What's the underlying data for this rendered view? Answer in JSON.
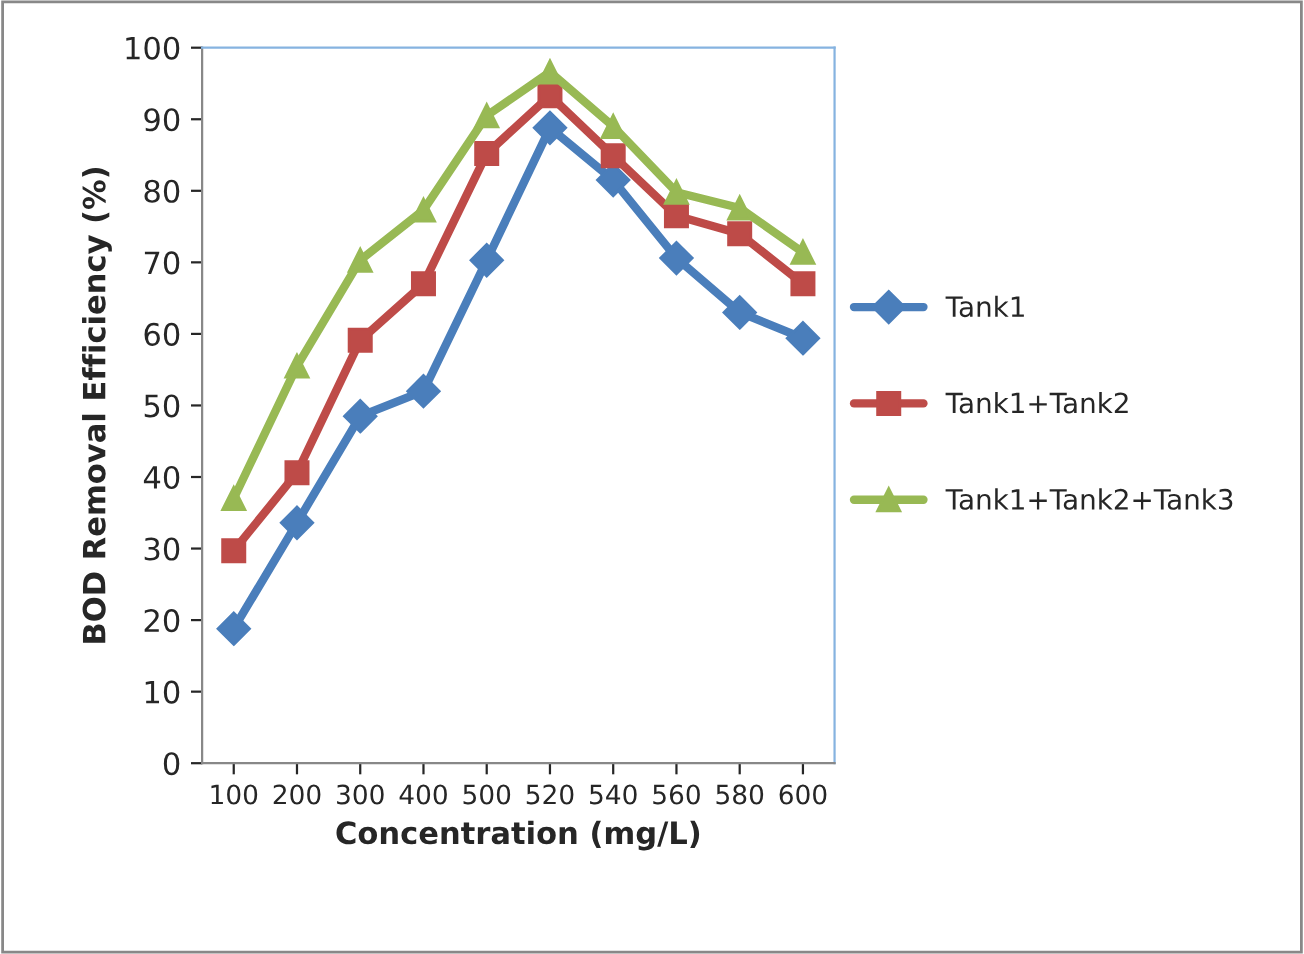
{
  "chart_data": {
    "type": "line",
    "xlabel": "Concentration (mg/L)",
    "ylabel": "BOD Removal Efficiency (%)",
    "categories": [
      "100",
      "200",
      "300",
      "400",
      "500",
      "520",
      "540",
      "560",
      "580",
      "600"
    ],
    "ylim": [
      0,
      100
    ],
    "yticks": [
      0,
      10,
      20,
      30,
      40,
      50,
      60,
      70,
      80,
      90,
      100
    ],
    "grid": false,
    "legend": "right",
    "series": [
      {
        "name": "Tank1",
        "color": "#4a7ebb",
        "marker": "diamond",
        "values": [
          18.8,
          33.6,
          48.5,
          52,
          70.3,
          88.8,
          81.5,
          70.6,
          63,
          59.4
        ]
      },
      {
        "name": "Tank1+Tank2",
        "color": "#be4b48",
        "marker": "square",
        "values": [
          29.7,
          40.6,
          59.1,
          67,
          85.2,
          93.3,
          84.9,
          76.5,
          74,
          67
        ]
      },
      {
        "name": "Tank1+Tank2+Tank3",
        "color": "#98b954",
        "marker": "triangle",
        "values": [
          37,
          55.5,
          70.3,
          77.3,
          90.5,
          96.6,
          89,
          79.8,
          77.6,
          71.4
        ]
      }
    ]
  }
}
